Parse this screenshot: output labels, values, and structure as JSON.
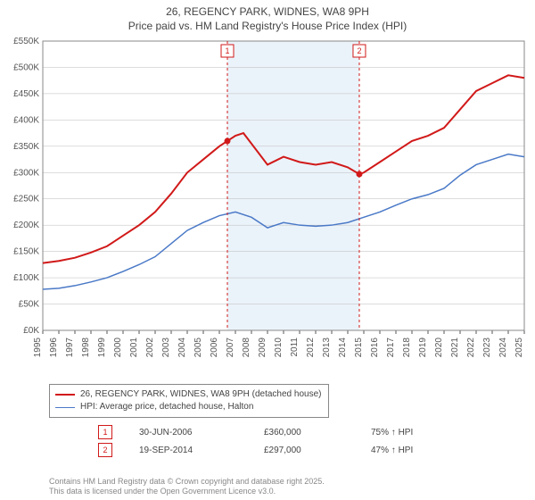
{
  "title_line1": "26, REGENCY PARK, WIDNES, WA8 9PH",
  "title_line2": "Price paid vs. HM Land Registry's House Price Index (HPI)",
  "chart": {
    "type": "line",
    "x_start_year": 1995,
    "x_end_year": 2025,
    "ylim": [
      0,
      550
    ],
    "ytick_step": 50,
    "y_prefix": "£",
    "y_suffix": "K",
    "background_color": "#ffffff",
    "grid_color": "#bbbbbb",
    "band_color": "#dbe9f5",
    "series": [
      {
        "name": "26, REGENCY PARK, WIDNES, WA8 9PH (detached house)",
        "color": "#d11919",
        "line_width": 2,
        "points": [
          [
            1995,
            128
          ],
          [
            1996,
            132
          ],
          [
            1997,
            138
          ],
          [
            1998,
            148
          ],
          [
            1999,
            160
          ],
          [
            2000,
            180
          ],
          [
            2001,
            200
          ],
          [
            2002,
            225
          ],
          [
            2003,
            260
          ],
          [
            2004,
            300
          ],
          [
            2005,
            325
          ],
          [
            2006,
            350
          ],
          [
            2006.5,
            360
          ],
          [
            2007,
            370
          ],
          [
            2007.5,
            375
          ],
          [
            2008,
            355
          ],
          [
            2009,
            315
          ],
          [
            2010,
            330
          ],
          [
            2011,
            320
          ],
          [
            2012,
            315
          ],
          [
            2013,
            320
          ],
          [
            2014,
            310
          ],
          [
            2014.72,
            297
          ],
          [
            2015,
            300
          ],
          [
            2016,
            320
          ],
          [
            2017,
            340
          ],
          [
            2018,
            360
          ],
          [
            2019,
            370
          ],
          [
            2020,
            385
          ],
          [
            2021,
            420
          ],
          [
            2022,
            455
          ],
          [
            2023,
            470
          ],
          [
            2024,
            485
          ],
          [
            2025,
            480
          ]
        ]
      },
      {
        "name": "HPI: Average price, detached house, Halton",
        "color": "#4a79c7",
        "line_width": 1.5,
        "points": [
          [
            1995,
            78
          ],
          [
            1996,
            80
          ],
          [
            1997,
            85
          ],
          [
            1998,
            92
          ],
          [
            1999,
            100
          ],
          [
            2000,
            112
          ],
          [
            2001,
            125
          ],
          [
            2002,
            140
          ],
          [
            2003,
            165
          ],
          [
            2004,
            190
          ],
          [
            2005,
            205
          ],
          [
            2006,
            218
          ],
          [
            2007,
            225
          ],
          [
            2008,
            215
          ],
          [
            2009,
            195
          ],
          [
            2010,
            205
          ],
          [
            2011,
            200
          ],
          [
            2012,
            198
          ],
          [
            2013,
            200
          ],
          [
            2014,
            205
          ],
          [
            2015,
            215
          ],
          [
            2016,
            225
          ],
          [
            2017,
            238
          ],
          [
            2018,
            250
          ],
          [
            2019,
            258
          ],
          [
            2020,
            270
          ],
          [
            2021,
            295
          ],
          [
            2022,
            315
          ],
          [
            2023,
            325
          ],
          [
            2024,
            335
          ],
          [
            2025,
            330
          ]
        ]
      }
    ],
    "sales": [
      {
        "id": "1",
        "year": 2006.5,
        "price_k": 360,
        "color": "#d11919",
        "date_label": "30-JUN-2006",
        "price_label": "£360,000",
        "pct_label": "75% ↑ HPI"
      },
      {
        "id": "2",
        "year": 2014.72,
        "price_k": 297,
        "color": "#d11919",
        "date_label": "19-SEP-2014",
        "price_label": "£297,000",
        "pct_label": "47% ↑ HPI"
      }
    ]
  },
  "legend": {
    "row1_label": "26, REGENCY PARK, WIDNES, WA8 9PH (detached house)",
    "row2_label": "HPI: Average price, detached house, Halton"
  },
  "footer_line1": "Contains HM Land Registry data © Crown copyright and database right 2025.",
  "footer_line2": "This data is licensed under the Open Government Licence v3.0."
}
